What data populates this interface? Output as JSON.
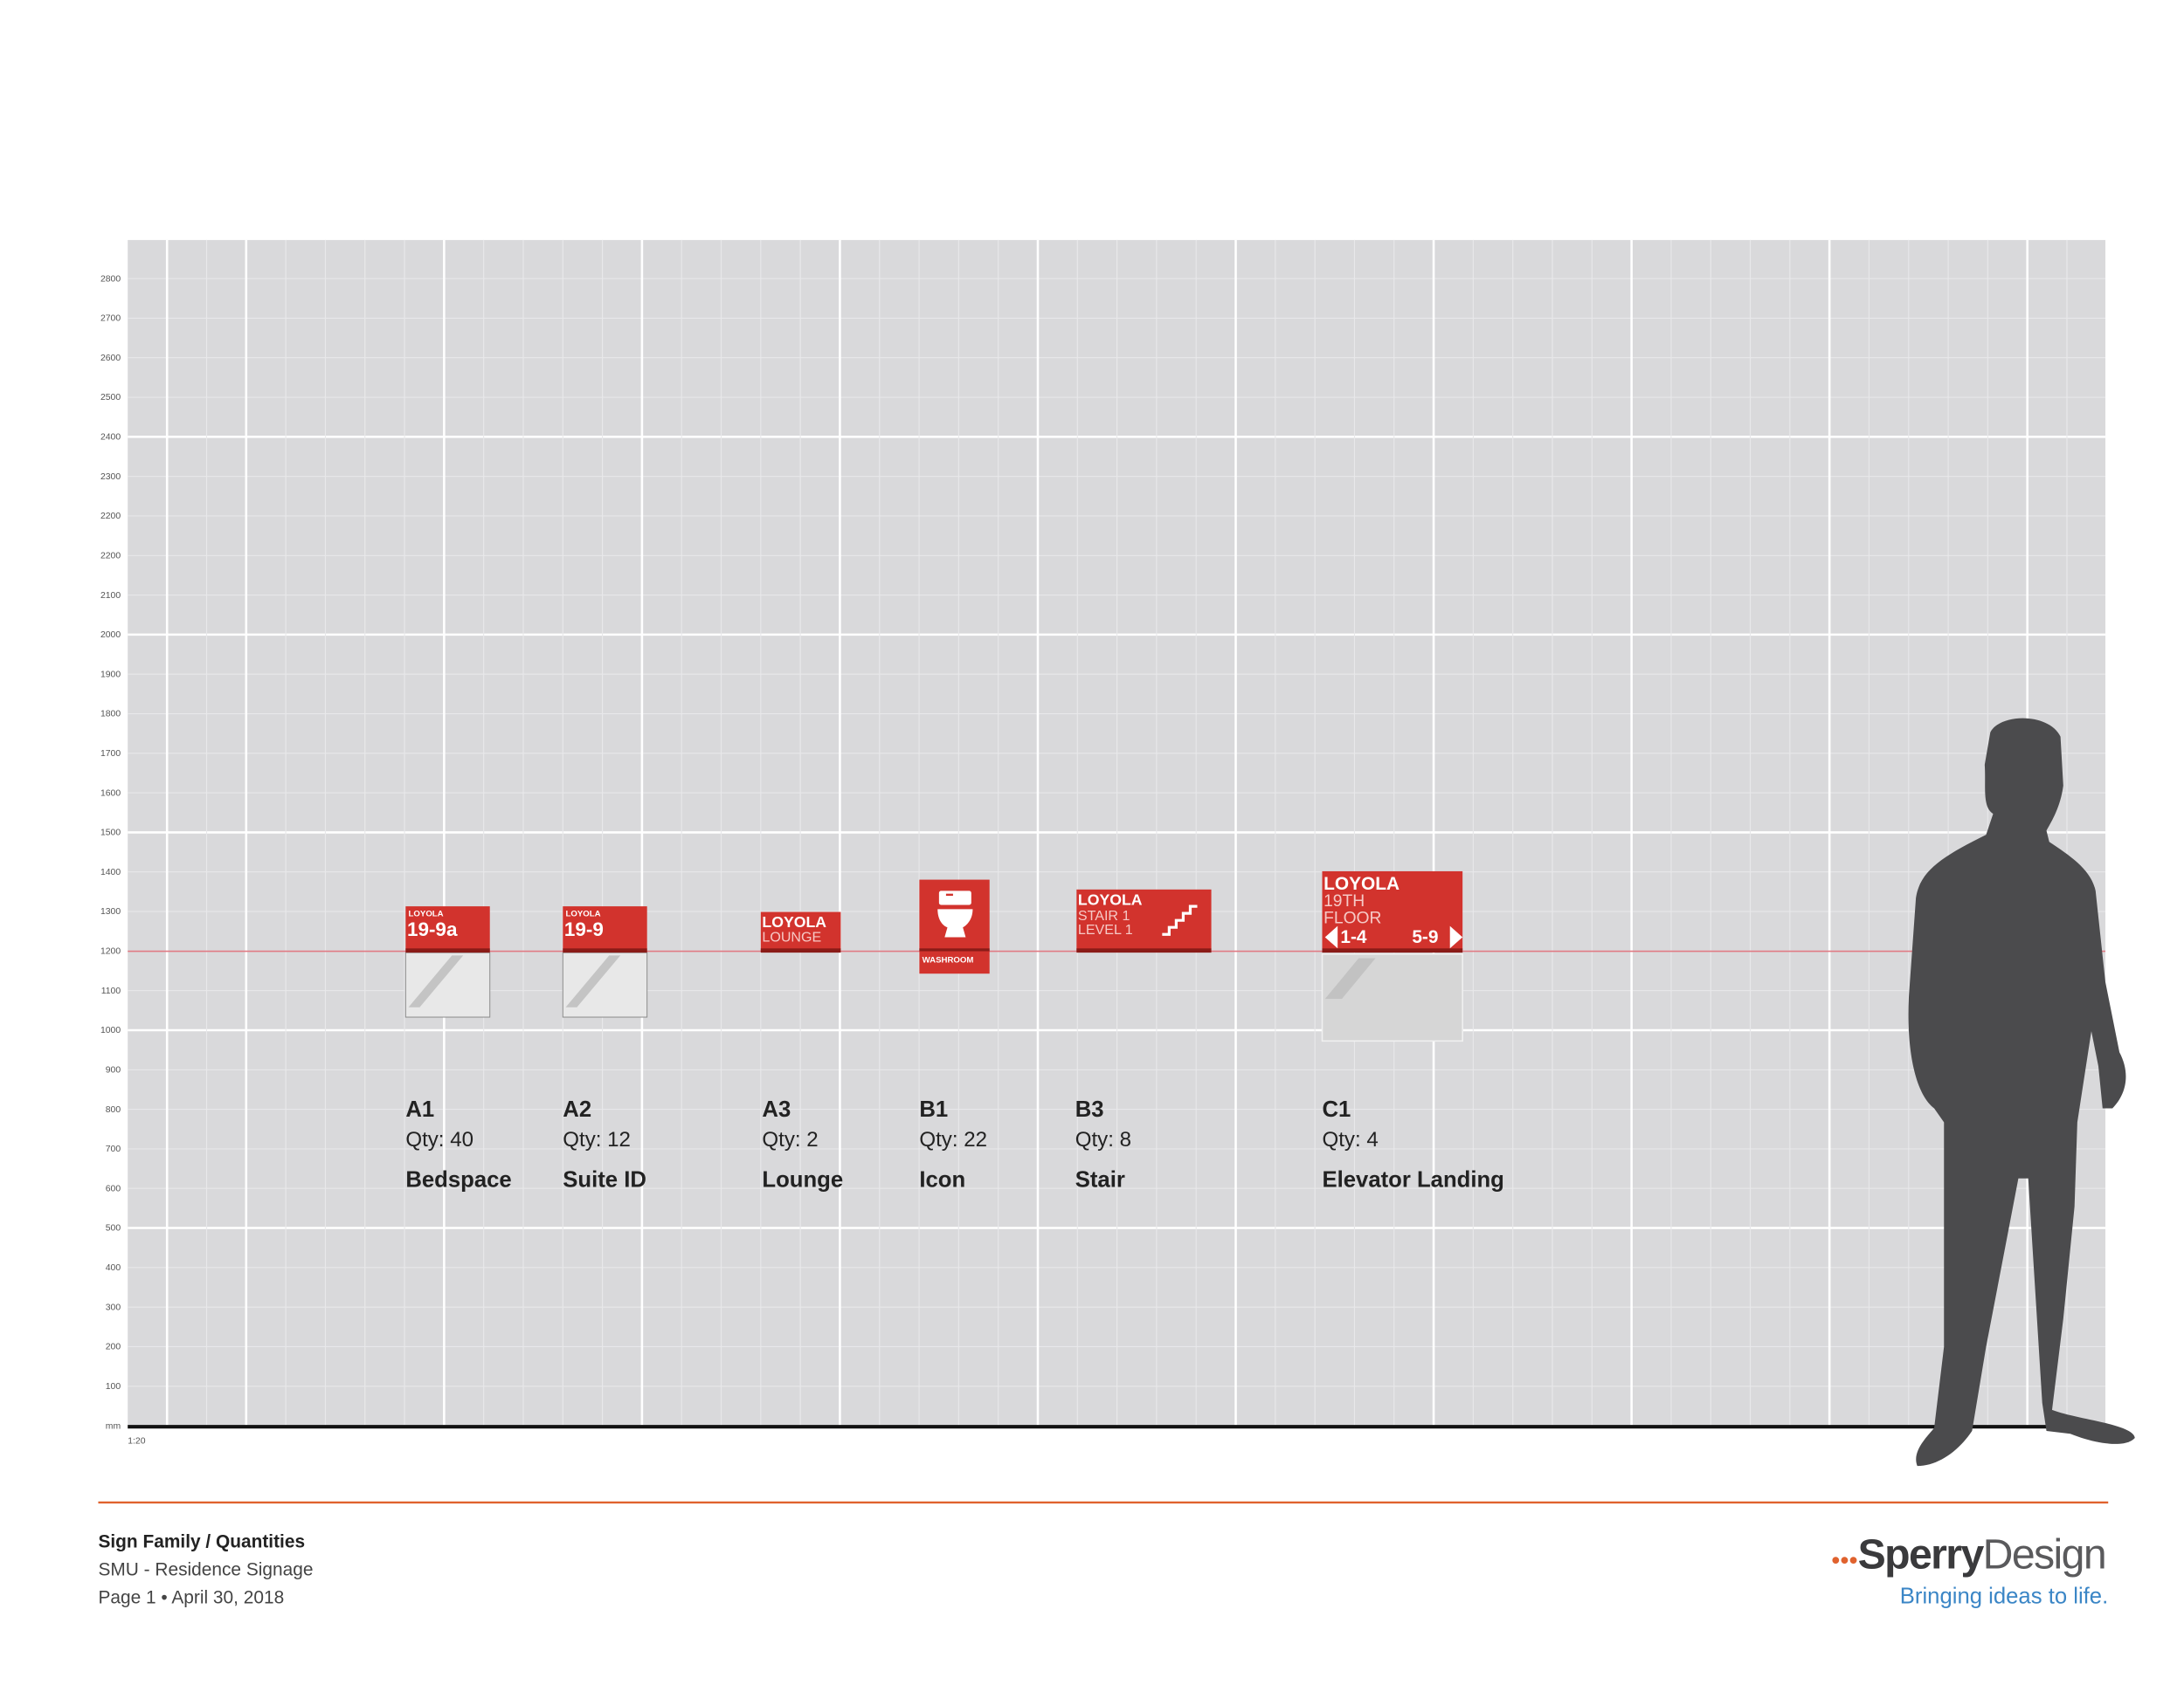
{
  "axis": {
    "labels": [
      "2800",
      "2700",
      "2600",
      "2500",
      "2400",
      "2300",
      "2200",
      "2200",
      "2100",
      "2000",
      "1900",
      "1800",
      "1700",
      "1600",
      "1500",
      "1400",
      "1300",
      "1200",
      "1100",
      "1000",
      "900",
      "800",
      "700",
      "600",
      "500",
      "400",
      "300",
      "200",
      "100",
      "mm"
    ],
    "scale": "1:20"
  },
  "signs": [
    {
      "code": "A1",
      "qty": "Qty: 40",
      "name": "Bedspace",
      "face": [
        "LOYOLA",
        "19-9a"
      ]
    },
    {
      "code": "A2",
      "qty": "Qty: 12",
      "name": "Suite ID",
      "face": [
        "LOYOLA",
        "19-9"
      ]
    },
    {
      "code": "A3",
      "qty": "Qty: 2",
      "name": "Lounge",
      "face": [
        "LOYOLA",
        "LOUNGE"
      ]
    },
    {
      "code": "B1",
      "qty": "Qty: 22",
      "name": "Icon",
      "face": [
        "WASHROOM"
      ]
    },
    {
      "code": "B3",
      "qty": "Qty: 8",
      "name": "Stair",
      "face": [
        "LOYOLA",
        "STAIR 1",
        "LEVEL 1"
      ]
    },
    {
      "code": "C1",
      "qty": "Qty: 4",
      "name": "Elevator Landing",
      "face": [
        "LOYOLA",
        "19TH",
        "FLOOR",
        "1-4",
        "5-9"
      ]
    }
  ],
  "footer": {
    "title": "Sign Family / Quantities",
    "project": "SMU - Residence Signage",
    "page": "Page 1 • April 30, 2018"
  },
  "logo": {
    "mark": "•••",
    "name1": "Sperry",
    "name2": "Design",
    "tagline": "Bringing ideas to life."
  }
}
